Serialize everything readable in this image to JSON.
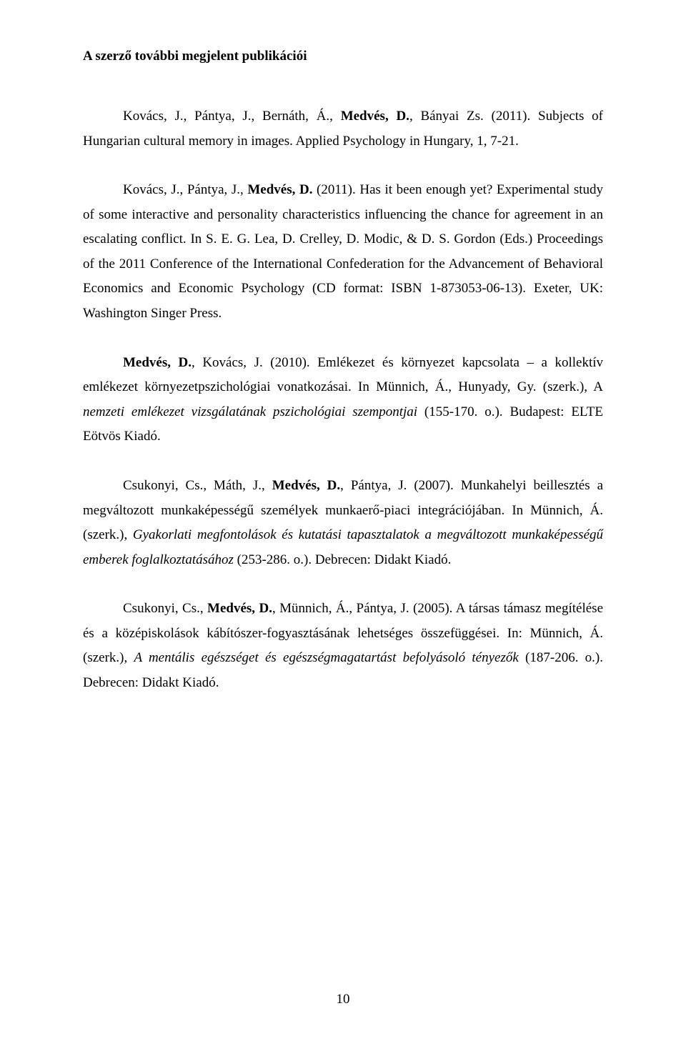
{
  "heading": "A szerző további megjelent publikációi",
  "p1": {
    "a": "Kovács, J., Pántya, J., Bernáth, Á., ",
    "b": "Medvés, D.",
    "c": ", Bányai Zs. (2011). Subjects of Hungarian cultural memory in images. Applied Psychology in Hungary, 1, 7-21."
  },
  "p2": {
    "a": "Kovács, J., Pántya, J., ",
    "b": "Medvés, D.",
    "c": " (2011). Has it been enough yet? Experimental study of some interactive and personality characteristics influencing the chance for agreement in an escalating conflict. In S. E. G. Lea, D. Crelley, D. Modic, & D. S. Gordon (Eds.) Proceedings of the 2011 Conference of the International Confederation for the Advancement of Behavioral Economics and Economic Psychology (CD format: ISBN 1-873053-06-13). Exeter, UK: Washington Singer Press."
  },
  "p3": {
    "a": "Medvés, D.",
    "b": ", Kovács, J. (2010). Emlékezet és környezet kapcsolata – a kollektív emlékezet környezetpszichológiai vonatkozásai. In Münnich, Á., Hunyady, Gy. (szerk.), A ",
    "c": "nemzeti emlékezet vizsgálatának pszichológiai szempontjai",
    "d": " (155-170. o.). Budapest: ELTE Eötvös Kiadó."
  },
  "p4": {
    "a": "Csukonyi, Cs., Máth, J., ",
    "b": "Medvés, D.",
    "c": ", Pántya, J. (2007). Munkahelyi beillesztés a megváltozott munkaképességű személyek munkaerő-piaci integrációjában. In Münnich, Á. (szerk.), ",
    "d": "Gyakorlati megfontolások és kutatási tapasztalatok a megváltozott munkaképességű emberek foglalkoztatásához",
    "e": " (253-286. o.). Debrecen: Didakt Kiadó."
  },
  "p5": {
    "a": "Csukonyi, Cs., ",
    "b": "Medvés, D.",
    "c": ", Münnich, Á., Pántya, J. (2005). A társas támasz megítélése és a középiskolások kábítószer-fogyasztásának lehetséges összefüggései. In: Münnich, Á. (szerk.), ",
    "d": "A mentális egészséget és egészségmagatartást befolyásoló tényezők",
    "e": " (187-206. o.). Debrecen: Didakt Kiadó."
  },
  "pageNumber": "10"
}
